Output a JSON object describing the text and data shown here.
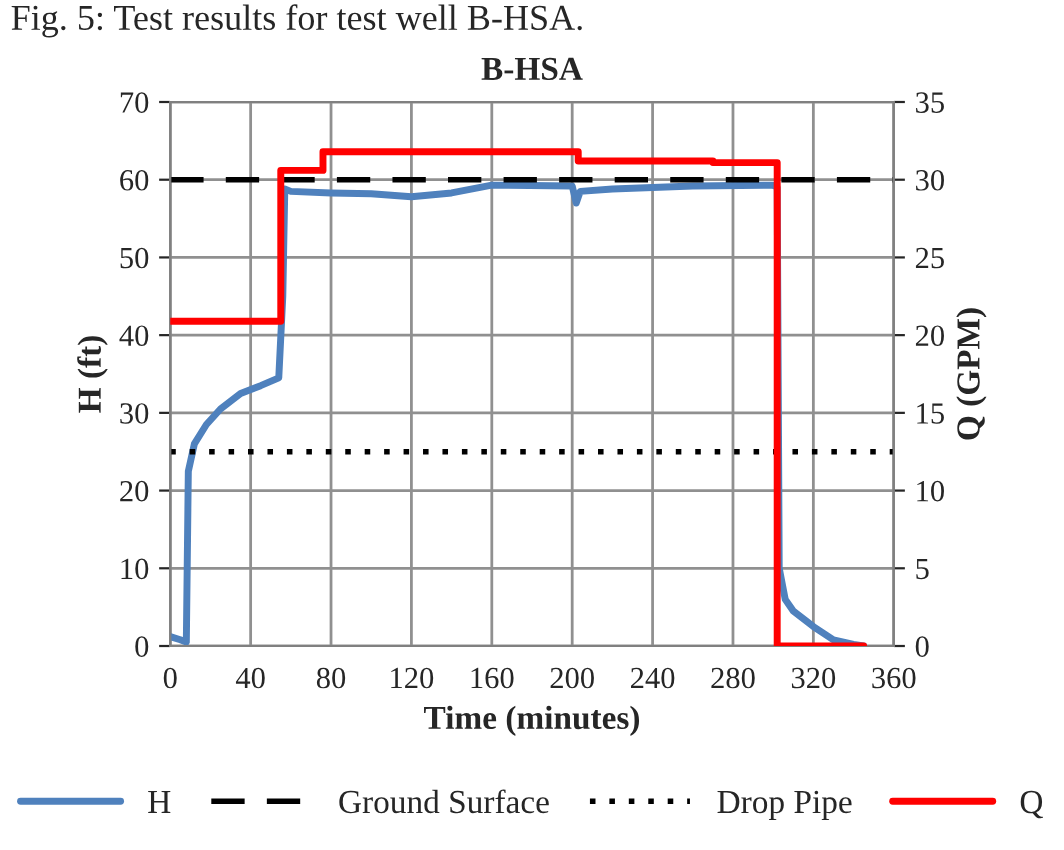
{
  "chart_data": {
    "type": "line",
    "title": "B-HSA",
    "xlabel": "Time (minutes)",
    "ylabel": "H (ft)",
    "y2label": "Q (GPM)",
    "annotations": [
      "Fig. 5: Test results for test well B-HSA."
    ],
    "xlim": [
      0,
      360
    ],
    "xticks": [
      0,
      40,
      80,
      120,
      160,
      200,
      240,
      280,
      320,
      360
    ],
    "ylim": [
      0,
      70
    ],
    "yticks": [
      0,
      10,
      20,
      30,
      40,
      50,
      60,
      70
    ],
    "y2lim": [
      0,
      35
    ],
    "y2ticks": [
      0,
      5,
      10,
      15,
      20,
      25,
      30,
      35
    ],
    "grid": true,
    "legend": "bottom",
    "series": [
      {
        "name": "H",
        "color": "#4f81bd",
        "line_style": "solid",
        "x": [
          0,
          5,
          8,
          9,
          12,
          18,
          25,
          35,
          45,
          54,
          56,
          57,
          60,
          80,
          100,
          120,
          140,
          160,
          200,
          202,
          204,
          220,
          260,
          300,
          302,
          303,
          306,
          310,
          320,
          330,
          340,
          345
        ],
        "values": [
          1.2,
          0.8,
          0.5,
          22.5,
          26,
          28.5,
          30.5,
          32.5,
          33.5,
          34.5,
          45,
          58.8,
          58.5,
          58.3,
          58.2,
          57.8,
          58.3,
          59.3,
          59.2,
          57,
          58.5,
          58.8,
          59.2,
          59.3,
          59,
          10,
          6,
          4.5,
          2.5,
          0.8,
          0.2,
          0
        ]
      },
      {
        "name": "Ground Surface",
        "color": "#000000",
        "line_style": "dashed",
        "x": [
          0,
          360
        ],
        "values": [
          60,
          60
        ]
      },
      {
        "name": "Drop Pipe",
        "color": "#000000",
        "line_style": "dotted",
        "x": [
          0,
          360
        ],
        "values": [
          25,
          25
        ]
      },
      {
        "name": "Q",
        "color": "#ff0000",
        "line_style": "solid",
        "axis": "y2",
        "x": [
          0,
          55,
          55,
          76,
          76,
          203,
          203,
          270,
          270,
          302,
          302,
          345
        ],
        "values": [
          20.9,
          20.9,
          30.6,
          30.6,
          31.8,
          31.8,
          31.2,
          31.2,
          31.1,
          31.1,
          0,
          0
        ]
      }
    ]
  }
}
